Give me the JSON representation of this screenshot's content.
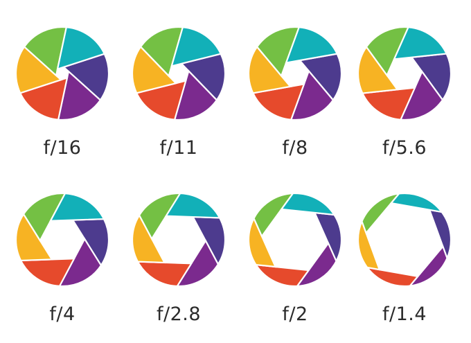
{
  "blade_colors": [
    "#7b2a8e",
    "#e64a2c",
    "#f7b323",
    "#74c044",
    "#12b0b8",
    "#4d3b8e"
  ],
  "items": [
    {
      "label": "f/16",
      "aperture": 0.14
    },
    {
      "label": "f/11",
      "aperture": 0.22
    },
    {
      "label": "f/8",
      "aperture": 0.3
    },
    {
      "label": "f/5.6",
      "aperture": 0.38
    },
    {
      "label": "f/4",
      "aperture": 0.48
    },
    {
      "label": "f/2.8",
      "aperture": 0.58
    },
    {
      "label": "f/2",
      "aperture": 0.72
    },
    {
      "label": "f/1.4",
      "aperture": 0.84
    }
  ]
}
